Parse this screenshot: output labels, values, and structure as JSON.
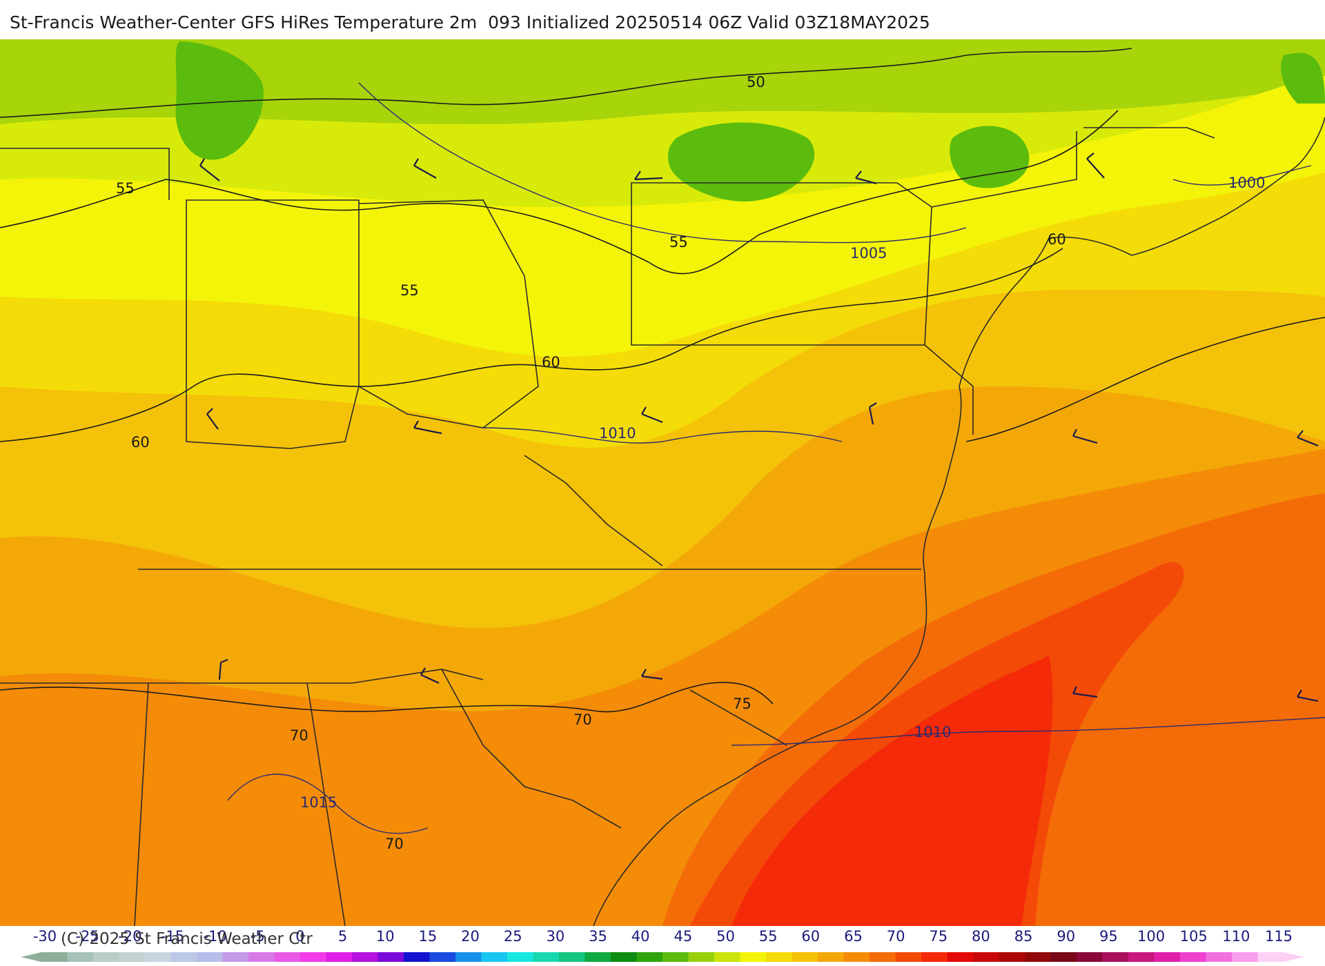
{
  "title": "St-Francis Weather-Center GFS HiRes Temperature 2m  093 Initialized 20250514 06Z Valid 03Z18MAY2025",
  "copyright": "(C) 2025 St Francis Weather Ctr",
  "contour_labels": [
    "50",
    "55",
    "55",
    "55",
    "55",
    "60",
    "60",
    "60",
    "70",
    "70",
    "70",
    "75",
    "1000",
    "1005",
    "1010",
    "1010",
    "1015"
  ],
  "colorbar": {
    "ticks": [
      "-30",
      "-25",
      "-20",
      "-15",
      "-10",
      "-5",
      "0",
      "5",
      "10",
      "15",
      "20",
      "25",
      "30",
      "35",
      "40",
      "45",
      "50",
      "55",
      "60",
      "65",
      "70",
      "75",
      "80",
      "85",
      "90",
      "95",
      "100",
      "105",
      "110",
      "115"
    ],
    "colors": [
      "#8fae99",
      "#a6c2b6",
      "#b9ccc6",
      "#c4d2d4",
      "#c8d4e0",
      "#bcc8e8",
      "#b6bdea",
      "#c29ae8",
      "#d77ae8",
      "#e95ae6",
      "#f23ce8",
      "#e11ee6",
      "#b511e0",
      "#7a0ad8",
      "#1414d0",
      "#1a4ae0",
      "#1890ec",
      "#18c6f0",
      "#18e6e0",
      "#18d8b0",
      "#14c480",
      "#10a840",
      "#0c8c10",
      "#2ea40e",
      "#5cbc0e",
      "#98d00c",
      "#cce40a",
      "#f4f408",
      "#f4dc08",
      "#f4c208",
      "#f4a808",
      "#f48c08",
      "#f46c08",
      "#f44a08",
      "#f42a08",
      "#e40808",
      "#c80808",
      "#ac0808",
      "#900808",
      "#780818",
      "#8a0838",
      "#a8105c",
      "#c81880",
      "#e020a8",
      "#f040d0",
      "#f070e0",
      "#f8a0ec",
      "#fcd0f4"
    ]
  },
  "colors": {
    "title_text": "#1a1a1a",
    "tick_text": "#1a1a7a",
    "contour_line": "#1a1a1a",
    "isobar_line": "#2b2b6e",
    "ocean_hot": "#f02a08"
  }
}
